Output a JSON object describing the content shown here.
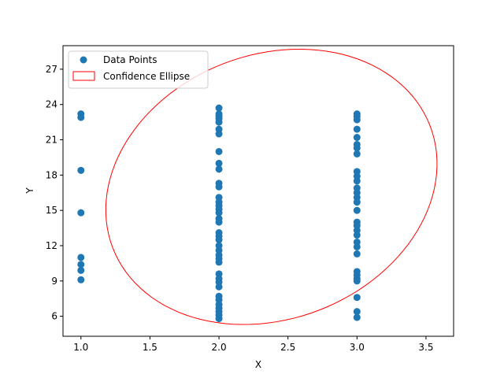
{
  "chart_data": {
    "type": "scatter",
    "title": "",
    "xlabel": "X",
    "ylabel": "Y",
    "xlim": [
      0.87,
      3.7
    ],
    "ylim": [
      4.3,
      29.0
    ],
    "xticks": [
      1.0,
      1.5,
      2.0,
      2.5,
      3.0,
      3.5
    ],
    "xtick_labels": [
      "1.0",
      "1.5",
      "2.0",
      "2.5",
      "3.0",
      "3.5"
    ],
    "yticks": [
      6,
      9,
      12,
      15,
      18,
      21,
      24,
      27
    ],
    "ytick_labels": [
      "6",
      "9",
      "12",
      "15",
      "18",
      "21",
      "24",
      "27"
    ],
    "grid": false,
    "legend_position": "upper-left",
    "series": [
      {
        "name": "Data Points",
        "type": "scatter",
        "color": "#1f77b4",
        "points": [
          [
            1,
            23.2
          ],
          [
            1,
            22.9
          ],
          [
            1,
            18.4
          ],
          [
            1,
            14.8
          ],
          [
            1,
            11.0
          ],
          [
            1,
            10.4
          ],
          [
            1,
            9.9
          ],
          [
            1,
            9.1
          ],
          [
            2,
            23.7
          ],
          [
            2,
            23.2
          ],
          [
            2,
            23.0
          ],
          [
            2,
            22.8
          ],
          [
            2,
            22.5
          ],
          [
            2,
            21.9
          ],
          [
            2,
            21.5
          ],
          [
            2,
            20.0
          ],
          [
            2,
            19.0
          ],
          [
            2,
            18.5
          ],
          [
            2,
            17.3
          ],
          [
            2,
            17.0
          ],
          [
            2,
            16.1
          ],
          [
            2,
            15.7
          ],
          [
            2,
            15.4
          ],
          [
            2,
            15.1
          ],
          [
            2,
            14.8
          ],
          [
            2,
            14.3
          ],
          [
            2,
            14.0
          ],
          [
            2,
            13.1
          ],
          [
            2,
            12.8
          ],
          [
            2,
            12.5
          ],
          [
            2,
            12.0
          ],
          [
            2,
            11.6
          ],
          [
            2,
            11.2
          ],
          [
            2,
            10.9
          ],
          [
            2,
            10.6
          ],
          [
            2,
            9.6
          ],
          [
            2,
            9.2
          ],
          [
            2,
            8.9
          ],
          [
            2,
            8.5
          ],
          [
            2,
            7.7
          ],
          [
            2,
            7.4
          ],
          [
            2,
            7.0
          ],
          [
            2,
            6.7
          ],
          [
            2,
            6.4
          ],
          [
            2,
            6.1
          ],
          [
            2,
            5.8
          ],
          [
            3,
            23.2
          ],
          [
            3,
            23.0
          ],
          [
            3,
            22.7
          ],
          [
            3,
            21.9
          ],
          [
            3,
            21.2
          ],
          [
            3,
            20.6
          ],
          [
            3,
            20.3
          ],
          [
            3,
            19.8
          ],
          [
            3,
            18.3
          ],
          [
            3,
            17.9
          ],
          [
            3,
            17.5
          ],
          [
            3,
            16.9
          ],
          [
            3,
            16.5
          ],
          [
            3,
            16.1
          ],
          [
            3,
            15.7
          ],
          [
            3,
            15.0
          ],
          [
            3,
            14.0
          ],
          [
            3,
            13.7
          ],
          [
            3,
            13.3
          ],
          [
            3,
            12.9
          ],
          [
            3,
            12.3
          ],
          [
            3,
            11.9
          ],
          [
            3,
            11.3
          ],
          [
            3,
            9.8
          ],
          [
            3,
            9.5
          ],
          [
            3,
            9.2
          ],
          [
            3,
            9.0
          ],
          [
            3,
            7.6
          ],
          [
            3,
            6.4
          ],
          [
            3,
            5.9
          ]
        ]
      },
      {
        "name": "Confidence Ellipse",
        "type": "ellipse",
        "color": "#ff0000",
        "center": [
          2.38,
          17.0
        ],
        "x_extent": [
          1.18,
          3.58
        ],
        "y_extent": [
          5.4,
          28.7
        ]
      }
    ]
  }
}
